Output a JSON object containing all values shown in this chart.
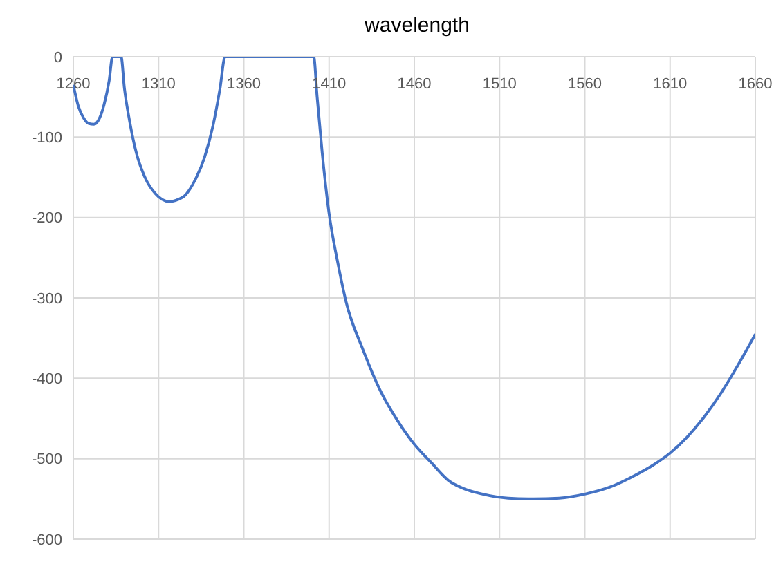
{
  "chart_data": {
    "type": "line",
    "title": "wavelength",
    "x": [
      1260,
      1263,
      1266,
      1269,
      1272,
      1275,
      1278,
      1281,
      1283,
      1288,
      1290,
      1293,
      1297,
      1302,
      1308,
      1316,
      1324,
      1331,
      1337,
      1342,
      1346,
      1349,
      1401,
      1403,
      1406,
      1410,
      1415,
      1420,
      1430,
      1440,
      1450,
      1460,
      1470,
      1480,
      1490,
      1500,
      1515,
      1530,
      1545,
      1560,
      1575,
      1590,
      1600,
      1610,
      1620,
      1630,
      1640,
      1650,
      1660
    ],
    "series": [
      {
        "color": "#4472c4",
        "values": [
          -35,
          -62,
          -76,
          -83,
          -84,
          -78,
          -60,
          -30,
          0,
          0,
          -40,
          -80,
          -120,
          -150,
          -170,
          -180,
          -175,
          -155,
          -125,
          -85,
          -40,
          0,
          0,
          -50,
          -120,
          -195,
          -255,
          -305,
          -365,
          -415,
          -452,
          -482,
          -505,
          -527,
          -538,
          -544,
          -549,
          -550,
          -549,
          -544,
          -535,
          -520,
          -508,
          -493,
          -473,
          -448,
          -418,
          -383,
          -345
        ]
      }
    ],
    "xlim": [
      1260,
      1660
    ],
    "xticks": [
      1260,
      1310,
      1360,
      1410,
      1460,
      1510,
      1560,
      1610,
      1660
    ],
    "ylim": [
      -600,
      0
    ],
    "yticks": [
      -600,
      -500,
      -400,
      -300,
      -200,
      -100,
      0
    ],
    "grid": true,
    "marker": "none",
    "line_style": "solid"
  }
}
